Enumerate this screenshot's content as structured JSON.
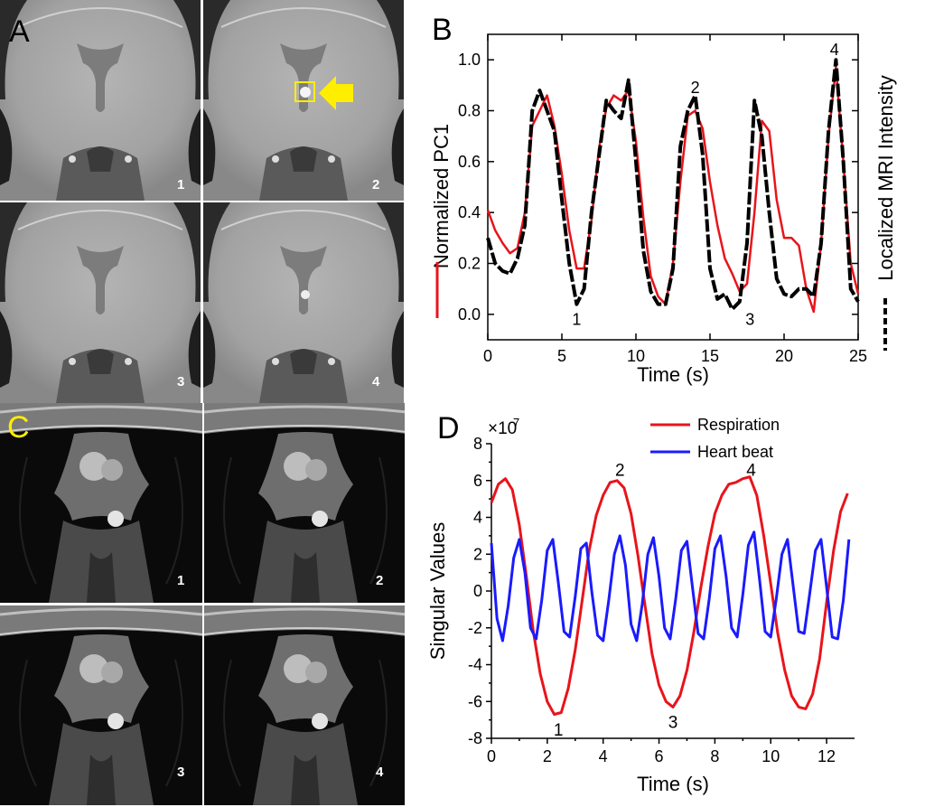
{
  "figure": {
    "panels": {
      "A": {
        "letter": "A",
        "frame_labels": [
          "1",
          "2",
          "3",
          "4"
        ]
      },
      "B": {
        "letter": "B"
      },
      "C": {
        "letter": "C",
        "frame_labels": [
          "1",
          "2",
          "3",
          "4"
        ]
      },
      "D": {
        "letter": "D"
      }
    }
  },
  "colors": {
    "red": "#e8141b",
    "black": "#000000",
    "blue": "#1a1aff",
    "yellow": "#ffee00"
  },
  "chart_data": [
    {
      "panel": "B",
      "type": "line",
      "xlabel": "Time (s)",
      "ylabel": "Normalized PC1",
      "y2label": "Localized MRI Intensity",
      "xlim": [
        0,
        25
      ],
      "ylim": [
        -0.1,
        1.1
      ],
      "xticks": [
        "0",
        "5",
        "10",
        "15",
        "20",
        "25"
      ],
      "yticks": [
        "0.0",
        "0.2",
        "0.4",
        "0.6",
        "0.8",
        "1.0"
      ],
      "annotations": [
        {
          "text": "1",
          "x": 6.0,
          "y": -0.02
        },
        {
          "text": "2",
          "x": 14.0,
          "y": 0.89
        },
        {
          "text": "3",
          "x": 17.7,
          "y": -0.02
        },
        {
          "text": "4",
          "x": 23.4,
          "y": 1.04
        }
      ],
      "series": [
        {
          "color": "red",
          "style": "solid",
          "x": [
            0.0,
            0.5,
            1.0,
            1.5,
            2.0,
            2.5,
            3.0,
            3.5,
            4.0,
            4.5,
            5.0,
            5.5,
            6.0,
            6.5,
            7.0,
            7.5,
            8.0,
            8.5,
            9.0,
            9.5,
            10.0,
            10.5,
            11.0,
            11.5,
            12.0,
            12.5,
            13.0,
            13.5,
            14.0,
            14.5,
            15.0,
            15.5,
            16.0,
            16.5,
            17.0,
            17.5,
            18.0,
            18.5,
            19.0,
            19.5,
            20.0,
            20.5,
            21.0,
            21.5,
            22.0,
            22.5,
            23.0,
            23.5,
            24.0,
            24.5,
            25.0
          ],
          "y": [
            0.41,
            0.33,
            0.28,
            0.24,
            0.26,
            0.4,
            0.74,
            0.8,
            0.86,
            0.74,
            0.55,
            0.33,
            0.18,
            0.18,
            0.37,
            0.65,
            0.81,
            0.86,
            0.84,
            0.88,
            0.68,
            0.38,
            0.15,
            0.07,
            0.04,
            0.2,
            0.52,
            0.78,
            0.8,
            0.73,
            0.52,
            0.35,
            0.22,
            0.16,
            0.09,
            0.12,
            0.4,
            0.76,
            0.72,
            0.45,
            0.3,
            0.3,
            0.27,
            0.1,
            0.01,
            0.28,
            0.7,
            0.97,
            0.6,
            0.2,
            0.08
          ]
        },
        {
          "color": "black",
          "style": "dashed",
          "x": [
            0.0,
            0.5,
            1.0,
            1.5,
            2.0,
            2.5,
            3.0,
            3.5,
            4.0,
            4.5,
            5.0,
            5.5,
            6.0,
            6.5,
            7.0,
            7.5,
            8.0,
            8.5,
            9.0,
            9.5,
            10.0,
            10.5,
            11.0,
            11.5,
            12.0,
            12.5,
            13.0,
            13.5,
            14.0,
            14.5,
            15.0,
            15.5,
            16.0,
            16.5,
            17.0,
            17.5,
            18.0,
            18.5,
            19.0,
            19.5,
            20.0,
            20.5,
            21.0,
            21.5,
            22.0,
            22.5,
            23.0,
            23.5,
            24.0,
            24.5,
            25.0
          ],
          "y": [
            0.3,
            0.2,
            0.17,
            0.16,
            0.22,
            0.35,
            0.8,
            0.88,
            0.8,
            0.72,
            0.45,
            0.2,
            0.04,
            0.1,
            0.4,
            0.62,
            0.84,
            0.8,
            0.77,
            0.92,
            0.6,
            0.25,
            0.09,
            0.04,
            0.04,
            0.18,
            0.66,
            0.8,
            0.86,
            0.63,
            0.18,
            0.06,
            0.08,
            0.02,
            0.05,
            0.28,
            0.84,
            0.7,
            0.4,
            0.14,
            0.08,
            0.07,
            0.1,
            0.1,
            0.07,
            0.28,
            0.72,
            1.0,
            0.6,
            0.1,
            0.05
          ]
        }
      ]
    },
    {
      "panel": "D",
      "type": "line",
      "xlabel": "Time (s)",
      "ylabel": "Singular Values",
      "exponent_label": "×10",
      "exponent_power": "7",
      "xlim": [
        0,
        13
      ],
      "ylim": [
        -8,
        8
      ],
      "xticks": [
        "0",
        "2",
        "4",
        "6",
        "8",
        "10",
        "12"
      ],
      "yticks": [
        "-8",
        "-6",
        "-4",
        "-2",
        "0",
        "2",
        "4",
        "6",
        "8"
      ],
      "legend": {
        "position": "top-right"
      },
      "annotations": [
        {
          "text": "1",
          "x": 2.4,
          "y": -7.5
        },
        {
          "text": "2",
          "x": 4.6,
          "y": 6.6
        },
        {
          "text": "3",
          "x": 6.5,
          "y": -7.1
        },
        {
          "text": "4",
          "x": 9.3,
          "y": 6.6
        }
      ],
      "series": [
        {
          "name": "Respiration",
          "color": "red",
          "x": [
            0.0,
            0.25,
            0.5,
            0.75,
            1.0,
            1.25,
            1.5,
            1.75,
            2.0,
            2.25,
            2.5,
            2.75,
            3.0,
            3.25,
            3.5,
            3.75,
            4.0,
            4.25,
            4.5,
            4.75,
            5.0,
            5.25,
            5.5,
            5.75,
            6.0,
            6.25,
            6.5,
            6.75,
            7.0,
            7.25,
            7.5,
            7.75,
            8.0,
            8.25,
            8.5,
            8.75,
            9.0,
            9.25,
            9.5,
            9.75,
            10.0,
            10.25,
            10.5,
            10.75,
            11.0,
            11.25,
            11.5,
            11.75,
            12.0,
            12.25,
            12.5,
            12.75
          ],
          "y": [
            4.8,
            5.8,
            6.1,
            5.5,
            3.6,
            0.8,
            -2.2,
            -4.5,
            -6.0,
            -6.7,
            -6.6,
            -5.3,
            -3.2,
            -0.5,
            2.2,
            4.1,
            5.2,
            5.9,
            6.0,
            5.6,
            4.2,
            1.9,
            -0.8,
            -3.4,
            -5.1,
            -6.0,
            -6.3,
            -5.7,
            -4.3,
            -2.2,
            0.2,
            2.4,
            4.2,
            5.2,
            5.8,
            5.9,
            6.1,
            6.2,
            5.2,
            3.0,
            0.4,
            -2.3,
            -4.3,
            -5.7,
            -6.3,
            -6.4,
            -5.6,
            -3.7,
            -0.6,
            2.2,
            4.3,
            5.3
          ]
        },
        {
          "name": "Heart beat",
          "color": "blue",
          "x": [
            0.0,
            0.2,
            0.4,
            0.6,
            0.8,
            1.0,
            1.2,
            1.4,
            1.6,
            1.8,
            2.0,
            2.2,
            2.4,
            2.6,
            2.8,
            3.0,
            3.2,
            3.4,
            3.6,
            3.8,
            4.0,
            4.2,
            4.4,
            4.6,
            4.8,
            5.0,
            5.2,
            5.4,
            5.6,
            5.8,
            6.0,
            6.2,
            6.4,
            6.6,
            6.8,
            7.0,
            7.2,
            7.4,
            7.6,
            7.8,
            8.0,
            8.2,
            8.4,
            8.6,
            8.8,
            9.0,
            9.2,
            9.4,
            9.6,
            9.8,
            10.0,
            10.2,
            10.4,
            10.6,
            10.8,
            11.0,
            11.2,
            11.4,
            11.6,
            11.8,
            12.0,
            12.2,
            12.4,
            12.6,
            12.8
          ],
          "y": [
            2.6,
            -1.5,
            -2.7,
            -0.8,
            1.8,
            2.8,
            1.0,
            -2.0,
            -2.6,
            -0.5,
            2.2,
            2.8,
            0.4,
            -2.2,
            -2.5,
            -0.3,
            2.3,
            2.6,
            -0.1,
            -2.4,
            -2.7,
            -0.5,
            2.0,
            3.0,
            1.4,
            -1.8,
            -2.7,
            -0.7,
            2.0,
            2.9,
            0.8,
            -2.0,
            -2.6,
            -0.4,
            2.2,
            2.7,
            0.2,
            -2.3,
            -2.6,
            -0.4,
            2.3,
            3.0,
            0.8,
            -2.0,
            -2.5,
            -0.2,
            2.5,
            3.2,
            0.6,
            -2.2,
            -2.5,
            -0.4,
            2.0,
            2.8,
            0.3,
            -2.2,
            -2.3,
            -0.1,
            2.2,
            2.8,
            0.2,
            -2.5,
            -2.6,
            -0.5,
            2.8
          ]
        }
      ]
    }
  ]
}
